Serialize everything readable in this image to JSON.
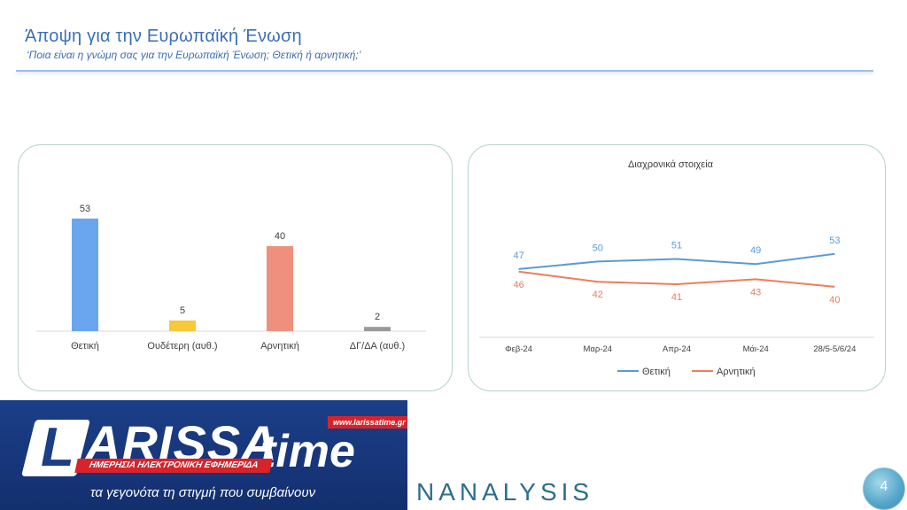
{
  "header": {
    "title": "Άποψη για την Ευρωπαϊκή Ένωση",
    "subtitle": "‘Ποια είναι η γνώμη σας για την Ευρωπαϊκή Ένωση; Θετική ή αρνητική;’"
  },
  "chart_data": [
    {
      "type": "bar",
      "title": "",
      "categories": [
        "Θετική",
        "Ουδέτερη (αυθ.)",
        "Αρνητική",
        "ΔΓ/ΔΑ (αυθ.)"
      ],
      "values": [
        53,
        5,
        40,
        2
      ],
      "value_labels": [
        "53",
        "5",
        "40",
        "2"
      ],
      "colors": [
        "#6aa5ef",
        "#f7c83a",
        "#ef8f7d",
        "#999999"
      ],
      "ylim": [
        0,
        60
      ],
      "grid": false
    },
    {
      "type": "line",
      "title": "Διαχρονικά στοιχεία",
      "categories": [
        "Φεβ-24",
        "Μαρ-24",
        "Απρ-24",
        "Μάι-24",
        "28/5-5/6/24"
      ],
      "series": [
        {
          "name": "Θετική",
          "values": [
            47,
            50,
            51,
            49,
            53
          ],
          "color": "#5b9bd5"
        },
        {
          "name": "Αρνητική",
          "values": [
            46,
            42,
            41,
            43,
            40
          ],
          "color": "#ed7d5d"
        }
      ],
      "ylim": [
        20,
        75
      ],
      "legend": "bottom",
      "grid": false
    }
  ],
  "banner": {
    "logo_initial": "L",
    "logo_word": "ARISSA",
    "logo_time": "time",
    "url": "www.larissatime.gr",
    "ribbon": "ΗΜΕΡΗΣΙΑ ΗΛΕΚΤΡΟΝΙΚΗ ΕΦΗΜΕΡΙΔΑ",
    "tagline": "τα γεγονότα τη στιγμή που συμβαίνουν"
  },
  "brand": "NANALYSIS",
  "page_number": "4"
}
